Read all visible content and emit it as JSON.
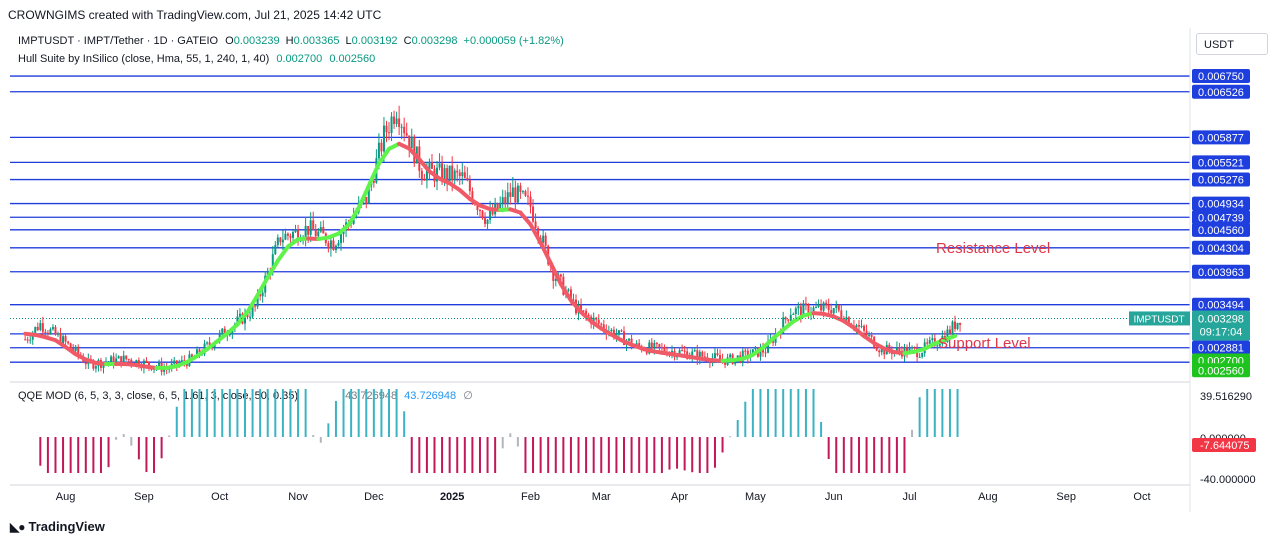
{
  "header": {
    "attribution": "CROWNGIMS created with TradingView.com, Jul 21, 2025 14:42 UTC"
  },
  "legend": {
    "symbol": "IMPTUSDT · IMPT/Tether · 1D · GATEIO",
    "o_label": "O",
    "o": "0.003239",
    "h_label": "H",
    "h": "0.003365",
    "l_label": "L",
    "l": "0.003192",
    "c_label": "C",
    "c": "0.003298",
    "change": "+0.000059 (+1.82%)",
    "hull": "Hull Suite by InSilico (close, Hma, 55, 1, 240, 1, 40)",
    "hull_v1": "0.002700",
    "hull_v2": "0.002560"
  },
  "qqe_legend": {
    "name": "QQE MOD (6, 5, 3, 3, close, 6, 5, 1.61, 3, close, 50, 0.35)",
    "v1": "43.726948",
    "v2": "43.726948",
    "symbol": "∅"
  },
  "currency": "USDT",
  "footer": {
    "brand": "TradingView"
  },
  "annotations": {
    "resistance": "Resistance Level",
    "support": "Support Level"
  },
  "price_tag": {
    "symbol": "IMPTUSDT",
    "price": "0.003298",
    "countdown": "09:17:04"
  },
  "colors": {
    "level_line": "#1f3cdc",
    "up": "#089981",
    "down": "#f23645",
    "hull_up": "#5ef24a",
    "hull_down": "#f05a66",
    "accent_red": "#e0364a"
  },
  "chart_data": {
    "type": "line",
    "title": "IMPTUSDT · IMPT/Tether · 1D · GATEIO",
    "xlabel": "",
    "ylabel": "",
    "ylim": [
      0.00245,
      0.00695
    ],
    "x_ticks": [
      "Aug",
      "Sep",
      "Oct",
      "Nov",
      "Dec",
      "2025",
      "Feb",
      "Mar",
      "Apr",
      "May",
      "Jun",
      "Jul",
      "Aug",
      "Sep",
      "Oct"
    ],
    "price_levels": [
      "0.006750",
      "0.006526",
      "0.005877",
      "0.005521",
      "0.005276",
      "0.004934",
      "0.004739",
      "0.004560",
      "0.004304",
      "0.003963",
      "0.003494",
      "0.003078",
      "0.002881",
      "0.002675"
    ],
    "hull_labels": [
      "0.002700",
      "0.002560"
    ],
    "approx_close_path": [
      {
        "x": "Jul 16, 2024",
        "y": 0.003
      },
      {
        "x": "Jul 22, 2024",
        "y": 0.00322
      },
      {
        "x": "Aug 1, 2024",
        "y": 0.00295
      },
      {
        "x": "Aug 10, 2024",
        "y": 0.00265
      },
      {
        "x": "Aug 25, 2024",
        "y": 0.00272
      },
      {
        "x": "Sep 10, 2024",
        "y": 0.00258
      },
      {
        "x": "Sep 20, 2024",
        "y": 0.00272
      },
      {
        "x": "Oct 1, 2024",
        "y": 0.00305
      },
      {
        "x": "Oct 15, 2024",
        "y": 0.00345
      },
      {
        "x": "Oct 25, 2024",
        "y": 0.00445
      },
      {
        "x": "Nov 5, 2024",
        "y": 0.00458
      },
      {
        "x": "Nov 15, 2024",
        "y": 0.00438
      },
      {
        "x": "Nov 28, 2024",
        "y": 0.005
      },
      {
        "x": "Dec 5, 2024",
        "y": 0.0059
      },
      {
        "x": "Dec 10, 2024",
        "y": 0.0063
      },
      {
        "x": "Dec 20, 2024",
        "y": 0.0054
      },
      {
        "x": "Jan 5, 2025",
        "y": 0.0053
      },
      {
        "x": "Jan 15, 2025",
        "y": 0.0047
      },
      {
        "x": "Jan 25, 2025",
        "y": 0.0051
      },
      {
        "x": "Feb 1, 2025",
        "y": 0.0049
      },
      {
        "x": "Feb 10, 2025",
        "y": 0.00395
      },
      {
        "x": "Feb 20, 2025",
        "y": 0.0034
      },
      {
        "x": "Mar 1, 2025",
        "y": 0.0032
      },
      {
        "x": "Mar 15, 2025",
        "y": 0.0029
      },
      {
        "x": "Apr 1, 2025",
        "y": 0.00282
      },
      {
        "x": "Apr 20, 2025",
        "y": 0.0027
      },
      {
        "x": "May 5, 2025",
        "y": 0.00285
      },
      {
        "x": "May 15, 2025",
        "y": 0.0034
      },
      {
        "x": "Jun 1, 2025",
        "y": 0.00345
      },
      {
        "x": "Jun 10, 2025",
        "y": 0.0032
      },
      {
        "x": "Jun 20, 2025",
        "y": 0.00285
      },
      {
        "x": "Jul 5, 2025",
        "y": 0.00283
      },
      {
        "x": "Jul 15, 2025",
        "y": 0.00305
      },
      {
        "x": "Jul 21, 2025",
        "y": 0.003298
      }
    ],
    "qqe_axis": [
      "39.516290",
      "0.000000",
      "-7.644075",
      "-40.000000"
    ]
  }
}
